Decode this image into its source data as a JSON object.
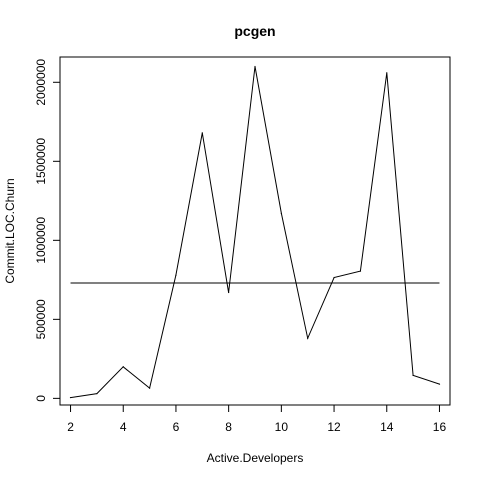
{
  "chart_data": {
    "type": "line",
    "title": "pcgen",
    "xlabel": "Active.Developers",
    "ylabel": "Commit.LOC.Churn",
    "xlim": [
      1.6,
      16.4
    ],
    "ylim": [
      -42000,
      2160000
    ],
    "x_ticks": [
      2,
      4,
      6,
      8,
      10,
      12,
      14,
      16
    ],
    "y_ticks": [
      0,
      500000,
      1000000,
      1500000,
      2000000
    ],
    "x_tick_labels": [
      "2",
      "4",
      "6",
      "8",
      "10",
      "12",
      "14",
      "16"
    ],
    "y_tick_labels": [
      "0",
      "500000",
      "1000000",
      "1500000",
      "2000000"
    ],
    "series": [
      {
        "x": [
          2,
          3,
          4,
          5,
          6,
          7,
          8,
          9,
          10,
          11,
          12,
          13,
          14,
          15,
          16
        ],
        "y": [
          5000,
          30000,
          200000,
          65000,
          780000,
          1680000,
          670000,
          2100000,
          1170000,
          380000,
          765000,
          805000,
          2060000,
          145000,
          90000
        ],
        "color": "#000000"
      }
    ],
    "reference_line": {
      "x": [
        2,
        16
      ],
      "y": [
        730000,
        730000
      ],
      "color": "#000000"
    },
    "grid": false,
    "legend": "none"
  }
}
